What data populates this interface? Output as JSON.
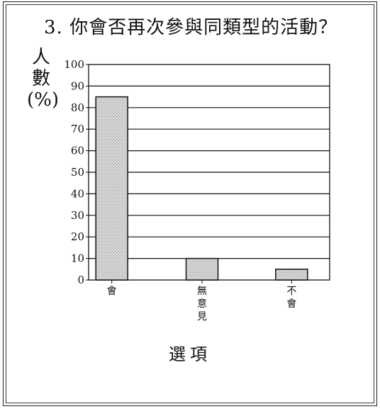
{
  "chart_data": {
    "type": "bar",
    "title": "3. 你會否再次參與同類型的活動？",
    "ylabel": "人數(%)",
    "xlabel": "選項",
    "categories": [
      "會",
      "無意見",
      "不會"
    ],
    "values": [
      85,
      10,
      5
    ],
    "ylim": [
      0,
      100
    ],
    "yticks": [
      0,
      10,
      20,
      30,
      40,
      50,
      60,
      70,
      80,
      90,
      100
    ],
    "grid": true,
    "bar_fill": "#c8c8c8",
    "bar_stroke": "#111111"
  }
}
